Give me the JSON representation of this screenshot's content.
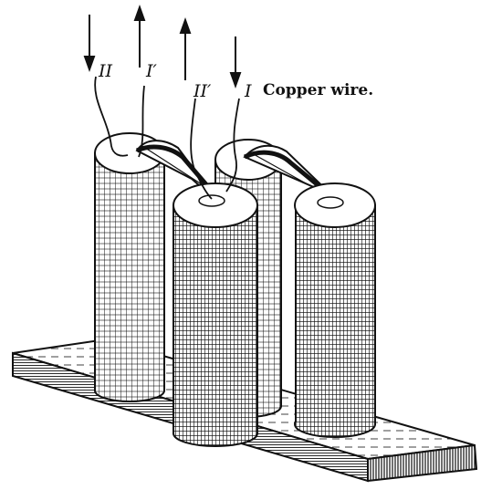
{
  "labels": {
    "wire_II": "II",
    "wire_I_prime": "I′",
    "wire_II_prime": "II′",
    "wire_I": "I",
    "caption": "Copper wire."
  },
  "colors": {
    "ink": "#111111",
    "paper": "#ffffff"
  }
}
